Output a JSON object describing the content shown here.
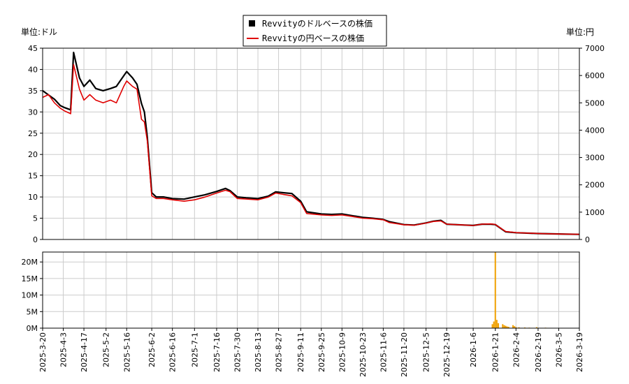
{
  "chart_data": [
    {
      "type": "line",
      "left_unit_label": "単位:ドル",
      "right_unit_label": "単位:円",
      "legend": [
        {
          "label": "Revvityのドルベースの株価",
          "color": "#000000",
          "marker": "square"
        },
        {
          "label": "Revvityの円ベースの株価",
          "color": "#e00000",
          "marker": "line"
        }
      ],
      "ylim_left": [
        0,
        45
      ],
      "yticks_left": [
        "0",
        "5",
        "10",
        "15",
        "20",
        "25",
        "30",
        "35",
        "40",
        "45"
      ],
      "ylim_right": [
        0,
        7000
      ],
      "yticks_right": [
        "0",
        "1000",
        "2000",
        "3000",
        "4000",
        "5000",
        "6000",
        "7000"
      ],
      "grid": true,
      "series": [
        {
          "name": "Revvityのドルベースの株価",
          "color": "#000000",
          "axis": "left",
          "points": [
            [
              "2025-03-20",
              35.0
            ],
            [
              "2025-03-24",
              34.0
            ],
            [
              "2025-03-28",
              33.0
            ],
            [
              "2025-04-01",
              31.5
            ],
            [
              "2025-04-04",
              31.0
            ],
            [
              "2025-04-08",
              30.5
            ],
            [
              "2025-04-10",
              44.0
            ],
            [
              "2025-04-14",
              38.0
            ],
            [
              "2025-04-17",
              36.0
            ],
            [
              "2025-04-21",
              37.5
            ],
            [
              "2025-04-25",
              35.5
            ],
            [
              "2025-04-30",
              35.0
            ],
            [
              "2025-05-05",
              35.5
            ],
            [
              "2025-05-09",
              36.0
            ],
            [
              "2025-05-14",
              38.5
            ],
            [
              "2025-05-16",
              39.5
            ],
            [
              "2025-05-20",
              38.0
            ],
            [
              "2025-05-23",
              36.5
            ],
            [
              "2025-05-26",
              32.0
            ],
            [
              "2025-05-28",
              30.0
            ],
            [
              "2025-05-30",
              24.0
            ],
            [
              "2025-06-02",
              11.0
            ],
            [
              "2025-06-05",
              10.0
            ],
            [
              "2025-06-10",
              10.0
            ],
            [
              "2025-06-16",
              9.6
            ],
            [
              "2025-06-24",
              9.5
            ],
            [
              "2025-07-01",
              10.0
            ],
            [
              "2025-07-08",
              10.5
            ],
            [
              "2025-07-16",
              11.3
            ],
            [
              "2025-07-22",
              12.0
            ],
            [
              "2025-07-25",
              11.5
            ],
            [
              "2025-07-30",
              10.0
            ],
            [
              "2025-08-05",
              9.8
            ],
            [
              "2025-08-13",
              9.6
            ],
            [
              "2025-08-20",
              10.2
            ],
            [
              "2025-08-25",
              11.2
            ],
            [
              "2025-08-30",
              11.0
            ],
            [
              "2025-09-05",
              10.8
            ],
            [
              "2025-09-11",
              9.0
            ],
            [
              "2025-09-15",
              6.5
            ],
            [
              "2025-09-25",
              6.0
            ],
            [
              "2025-10-02",
              5.9
            ],
            [
              "2025-10-09",
              6.0
            ],
            [
              "2025-10-16",
              5.6
            ],
            [
              "2025-10-23",
              5.2
            ],
            [
              "2025-10-30",
              5.0
            ],
            [
              "2025-11-06",
              4.7
            ],
            [
              "2025-11-10",
              4.2
            ],
            [
              "2025-11-20",
              3.5
            ],
            [
              "2025-11-27",
              3.4
            ],
            [
              "2025-12-05",
              3.9
            ],
            [
              "2025-12-10",
              4.3
            ],
            [
              "2025-12-15",
              4.5
            ],
            [
              "2025-12-19",
              3.6
            ],
            [
              "2025-12-31",
              3.4
            ],
            [
              "2026-01-06",
              3.3
            ],
            [
              "2026-01-12",
              3.6
            ],
            [
              "2026-01-18",
              3.6
            ],
            [
              "2026-01-21",
              3.5
            ],
            [
              "2026-01-23",
              3.0
            ],
            [
              "2026-01-28",
              1.8
            ],
            [
              "2026-02-04",
              1.6
            ],
            [
              "2026-02-19",
              1.4
            ],
            [
              "2026-03-05",
              1.3
            ],
            [
              "2026-03-19",
              1.2
            ]
          ]
        },
        {
          "name": "Revvityの円ベースの株価",
          "color": "#e00000",
          "axis": "right",
          "points": [
            [
              "2025-03-20",
              5200
            ],
            [
              "2025-03-24",
              5300
            ],
            [
              "2025-03-28",
              5000
            ],
            [
              "2025-04-01",
              4800
            ],
            [
              "2025-04-04",
              4700
            ],
            [
              "2025-04-08",
              4600
            ],
            [
              "2025-04-10",
              6400
            ],
            [
              "2025-04-14",
              5500
            ],
            [
              "2025-04-17",
              5100
            ],
            [
              "2025-04-21",
              5300
            ],
            [
              "2025-04-25",
              5100
            ],
            [
              "2025-04-30",
              5000
            ],
            [
              "2025-05-05",
              5100
            ],
            [
              "2025-05-09",
              5000
            ],
            [
              "2025-05-14",
              5600
            ],
            [
              "2025-05-16",
              5800
            ],
            [
              "2025-05-20",
              5600
            ],
            [
              "2025-05-23",
              5500
            ],
            [
              "2025-05-26",
              4400
            ],
            [
              "2025-05-28",
              4300
            ],
            [
              "2025-05-30",
              3600
            ],
            [
              "2025-06-02",
              1600
            ],
            [
              "2025-06-05",
              1500
            ],
            [
              "2025-06-10",
              1500
            ],
            [
              "2025-06-16",
              1450
            ],
            [
              "2025-06-24",
              1400
            ],
            [
              "2025-07-01",
              1450
            ],
            [
              "2025-07-08",
              1550
            ],
            [
              "2025-07-16",
              1700
            ],
            [
              "2025-07-22",
              1800
            ],
            [
              "2025-07-25",
              1750
            ],
            [
              "2025-07-30",
              1500
            ],
            [
              "2025-08-05",
              1480
            ],
            [
              "2025-08-13",
              1450
            ],
            [
              "2025-08-20",
              1550
            ],
            [
              "2025-08-25",
              1700
            ],
            [
              "2025-08-30",
              1650
            ],
            [
              "2025-09-05",
              1600
            ],
            [
              "2025-09-11",
              1350
            ],
            [
              "2025-09-15",
              950
            ],
            [
              "2025-09-25",
              900
            ],
            [
              "2025-10-02",
              880
            ],
            [
              "2025-10-09",
              900
            ],
            [
              "2025-10-16",
              840
            ],
            [
              "2025-10-23",
              780
            ],
            [
              "2025-10-30",
              760
            ],
            [
              "2025-11-06",
              720
            ],
            [
              "2025-11-10",
              620
            ],
            [
              "2025-11-20",
              540
            ],
            [
              "2025-11-27",
              520
            ],
            [
              "2025-12-05",
              600
            ],
            [
              "2025-12-10",
              660
            ],
            [
              "2025-12-15",
              680
            ],
            [
              "2025-12-19",
              560
            ],
            [
              "2025-12-31",
              530
            ],
            [
              "2026-01-06",
              510
            ],
            [
              "2026-01-12",
              560
            ],
            [
              "2026-01-18",
              570
            ],
            [
              "2026-01-21",
              550
            ],
            [
              "2026-01-23",
              470
            ],
            [
              "2026-01-28",
              290
            ],
            [
              "2026-02-04",
              250
            ],
            [
              "2026-02-19",
              220
            ],
            [
              "2026-03-05",
              200
            ],
            [
              "2026-03-19",
              190
            ]
          ]
        }
      ]
    },
    {
      "type": "bar",
      "ylim": [
        0,
        23000000
      ],
      "yticks": [
        "0M",
        "5M",
        "10M",
        "15M",
        "20M"
      ],
      "xlim": [
        "2025-03-20",
        "2026-03-19"
      ],
      "xticks": [
        "2025-3-20",
        "2025-4-3",
        "2025-4-17",
        "2025-5-2",
        "2025-5-16",
        "2025-6-2",
        "2025-6-16",
        "2025-7-1",
        "2025-7-16",
        "2025-7-30",
        "2025-8-13",
        "2025-8-27",
        "2025-9-11",
        "2025-9-25",
        "2025-10-9",
        "2025-10-23",
        "2025-11-6",
        "2025-11-20",
        "2025-12-5",
        "2025-12-19",
        "2026-1-6",
        "2026-1-21",
        "2026-2-4",
        "2026-2-19",
        "2026-3-5",
        "2026-3-19"
      ],
      "grid": true,
      "color": "#f0a000",
      "series": [
        {
          "points": [
            [
              "2026-01-19",
              1200000
            ],
            [
              "2026-01-20",
              2000000
            ],
            [
              "2026-01-21",
              23000000
            ],
            [
              "2026-01-22",
              2500000
            ],
            [
              "2026-01-23",
              1500000
            ],
            [
              "2026-01-26",
              1200000
            ],
            [
              "2026-01-27",
              900000
            ],
            [
              "2026-01-28",
              700000
            ],
            [
              "2026-01-29",
              500000
            ],
            [
              "2026-01-30",
              400000
            ],
            [
              "2026-02-02",
              900000
            ],
            [
              "2026-02-03",
              600000
            ],
            [
              "2026-02-04",
              300000
            ],
            [
              "2026-02-06",
              250000
            ],
            [
              "2026-02-10",
              200000
            ],
            [
              "2026-02-13",
              150000
            ],
            [
              "2026-02-18",
              300000
            ],
            [
              "2026-02-24",
              150000
            ],
            [
              "2026-03-02",
              100000
            ],
            [
              "2026-03-09",
              100000
            ]
          ]
        }
      ]
    }
  ]
}
